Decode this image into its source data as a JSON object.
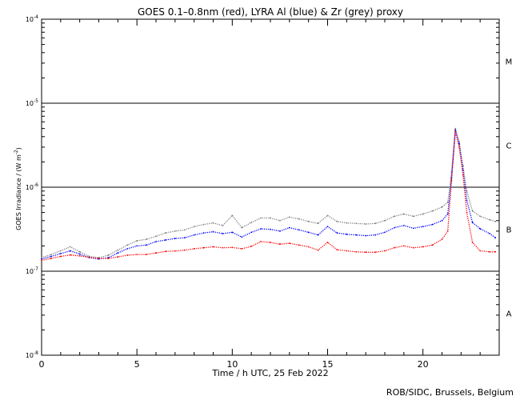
{
  "chart_data": {
    "type": "scatter",
    "title": "GOES 0.1–0.8nm (red), LYRA Al (blue) & Zr (grey) proxy",
    "xlabel": "Time / h UTC, 25 Feb 2022",
    "ylabel_prefix": "GOES Irradiance / (W m",
    "ylabel_exp": "-2",
    "ylabel_suffix": ")",
    "credit": "ROB/SIDC, Brussels, Belgium",
    "xlim": [
      0,
      24
    ],
    "ylim": [
      1e-08,
      0.0001
    ],
    "yscale": "log",
    "x_ticks": [
      0,
      5,
      10,
      15,
      20
    ],
    "x_tick_labels": [
      "0",
      "5",
      "10",
      "15",
      "20"
    ],
    "y_ticks": [
      {
        "value": 0.0001,
        "base": "10",
        "exp": "-4"
      },
      {
        "value": 1e-05,
        "base": "10",
        "exp": "-5"
      },
      {
        "value": 1e-06,
        "base": "10",
        "exp": "-6"
      },
      {
        "value": 1e-07,
        "base": "10",
        "exp": "-7"
      },
      {
        "value": 1e-08,
        "base": "10",
        "exp": "-8"
      }
    ],
    "class_thresholds": [
      1e-05,
      1e-06,
      1e-07
    ],
    "flare_classes": [
      {
        "label": "M",
        "value": 3.16e-05
      },
      {
        "label": "C",
        "value": 3.16e-06
      },
      {
        "label": "B",
        "value": 3.16e-07
      },
      {
        "label": "A",
        "value": 3.16e-08
      }
    ],
    "series": [
      {
        "name": "GOES 0.1–0.8nm",
        "color": "#ff0000",
        "x": [
          0,
          0.5,
          1,
          1.5,
          2,
          2.5,
          3,
          3.5,
          4,
          4.5,
          5,
          5.5,
          6,
          6.5,
          7,
          7.5,
          8,
          8.5,
          9,
          9.5,
          10,
          10.5,
          11,
          11.5,
          12,
          12.5,
          13,
          13.5,
          14,
          14.5,
          15,
          15.5,
          16,
          16.5,
          17,
          17.5,
          18,
          18.5,
          19,
          19.5,
          20,
          20.5,
          21,
          21.3,
          21.5,
          21.7,
          21.9,
          22.1,
          22.3,
          22.6,
          23,
          23.5,
          23.8
        ],
        "y": [
          1.35e-07,
          1.42e-07,
          1.5e-07,
          1.56e-07,
          1.52e-07,
          1.46e-07,
          1.42e-07,
          1.42e-07,
          1.48e-07,
          1.55e-07,
          1.58e-07,
          1.58e-07,
          1.65e-07,
          1.72e-07,
          1.74e-07,
          1.78e-07,
          1.85e-07,
          1.9e-07,
          1.95e-07,
          1.9e-07,
          1.92e-07,
          1.85e-07,
          1.98e-07,
          2.25e-07,
          2.2e-07,
          2.1e-07,
          2.15e-07,
          2.05e-07,
          1.95e-07,
          1.78e-07,
          2.2e-07,
          1.8e-07,
          1.75e-07,
          1.7e-07,
          1.68e-07,
          1.68e-07,
          1.75e-07,
          1.9e-07,
          2e-07,
          1.9e-07,
          1.95e-07,
          2.05e-07,
          2.4e-07,
          3e-07,
          1.2e-06,
          4.6e-06,
          3e-06,
          1.4e-06,
          5e-07,
          2.2e-07,
          1.75e-07,
          1.7e-07,
          1.7e-07
        ]
      },
      {
        "name": "LYRA Al",
        "color": "#0000ff",
        "x": [
          0,
          0.5,
          1,
          1.5,
          2,
          2.5,
          3,
          3.5,
          4,
          4.5,
          5,
          5.5,
          6,
          6.5,
          7,
          7.5,
          8,
          8.5,
          9,
          9.5,
          10,
          10.5,
          11,
          11.5,
          12,
          12.5,
          13,
          13.5,
          14,
          14.5,
          15,
          15.5,
          16,
          16.5,
          17,
          17.5,
          18,
          18.5,
          19,
          19.5,
          20,
          20.5,
          21,
          21.3,
          21.5,
          21.7,
          21.9,
          22.1,
          22.3,
          22.6,
          23,
          23.5,
          23.8
        ],
        "y": [
          1.4e-07,
          1.5e-07,
          1.62e-07,
          1.75e-07,
          1.6e-07,
          1.45e-07,
          1.4e-07,
          1.45e-07,
          1.65e-07,
          1.85e-07,
          2e-07,
          2.05e-07,
          2.25e-07,
          2.35e-07,
          2.45e-07,
          2.5e-07,
          2.7e-07,
          2.85e-07,
          2.95e-07,
          2.8e-07,
          2.9e-07,
          2.55e-07,
          2.9e-07,
          3.2e-07,
          3.15e-07,
          3e-07,
          3.3e-07,
          3.1e-07,
          2.9e-07,
          2.7e-07,
          3.4e-07,
          2.85e-07,
          2.75e-07,
          2.7e-07,
          2.65e-07,
          2.7e-07,
          2.9e-07,
          3.3e-07,
          3.5e-07,
          3.25e-07,
          3.4e-07,
          3.6e-07,
          4e-07,
          4.8e-07,
          1.3e-06,
          4.8e-06,
          3.3e-06,
          1.6e-06,
          7e-07,
          3.8e-07,
          3.2e-07,
          2.8e-07,
          2.5e-07
        ]
      },
      {
        "name": "Zr proxy",
        "color": "#808080",
        "x": [
          0,
          0.5,
          1,
          1.5,
          2,
          2.5,
          3,
          3.5,
          4,
          4.5,
          5,
          5.5,
          6,
          6.5,
          7,
          7.5,
          8,
          8.5,
          9,
          9.5,
          10,
          10.5,
          11,
          11.5,
          12,
          12.5,
          13,
          13.5,
          14,
          14.5,
          15,
          15.5,
          16,
          16.5,
          17,
          17.5,
          18,
          18.5,
          19,
          19.5,
          20,
          20.5,
          21,
          21.3,
          21.5,
          21.7,
          21.9,
          22.1,
          22.3,
          22.6,
          23,
          23.5,
          23.8
        ],
        "y": [
          1.45e-07,
          1.58e-07,
          1.75e-07,
          1.95e-07,
          1.7e-07,
          1.5e-07,
          1.45e-07,
          1.55e-07,
          1.78e-07,
          2.05e-07,
          2.3e-07,
          2.4e-07,
          2.6e-07,
          2.85e-07,
          3e-07,
          3.1e-07,
          3.4e-07,
          3.6e-07,
          3.75e-07,
          3.5e-07,
          4.6e-07,
          3.3e-07,
          3.8e-07,
          4.3e-07,
          4.3e-07,
          4e-07,
          4.4e-07,
          4.2e-07,
          3.9e-07,
          3.7e-07,
          4.6e-07,
          3.9e-07,
          3.75e-07,
          3.7e-07,
          3.65e-07,
          3.7e-07,
          4e-07,
          4.5e-07,
          4.8e-07,
          4.5e-07,
          4.8e-07,
          5.2e-07,
          5.8e-07,
          6.6e-07,
          1.5e-06,
          5e-06,
          3.5e-06,
          1.8e-06,
          9e-07,
          5.2e-07,
          4.5e-07,
          4.1e-07,
          3.9e-07
        ]
      }
    ]
  }
}
